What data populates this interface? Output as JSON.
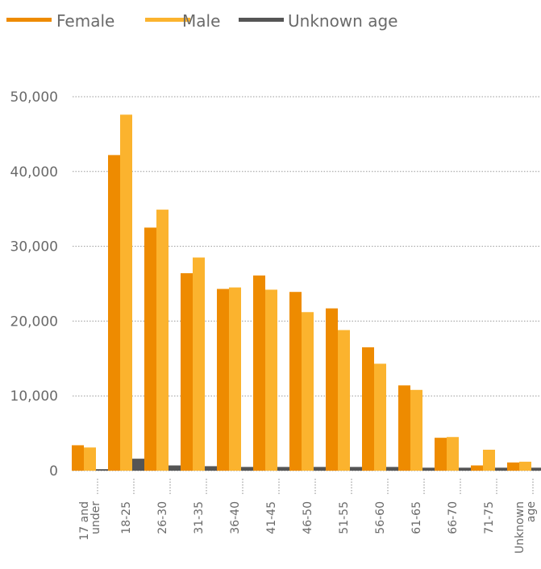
{
  "chart_data": {
    "type": "bar",
    "categories": [
      [
        "17 and",
        "under"
      ],
      [
        "18-25"
      ],
      [
        "26-30"
      ],
      [
        "31-35"
      ],
      [
        "36-40"
      ],
      [
        "41-45"
      ],
      [
        "46-50"
      ],
      [
        "51-55"
      ],
      [
        "56-60"
      ],
      [
        "61-65"
      ],
      [
        "66-70"
      ],
      [
        "71-75"
      ],
      [
        "Unknown",
        "age"
      ]
    ],
    "series": [
      {
        "name": "Female",
        "color": "#ee8b00",
        "values": [
          3400,
          42200,
          32500,
          26400,
          24300,
          26100,
          23900,
          21700,
          16500,
          11400,
          4400,
          700,
          1100
        ]
      },
      {
        "name": "Male",
        "color": "#fbb32e",
        "values": [
          3100,
          47600,
          34900,
          28500,
          24500,
          24200,
          21200,
          18800,
          14300,
          10800,
          4500,
          2800,
          1200
        ]
      },
      {
        "name": "Unknown age",
        "color": "#555555",
        "values": [
          200,
          1600,
          700,
          600,
          500,
          500,
          500,
          500,
          500,
          400,
          400,
          400,
          400
        ]
      }
    ],
    "y_ticks": [
      "0",
      "10,000",
      "20,000",
      "30,000",
      "40,000",
      "50,000"
    ],
    "y_tick_values": [
      0,
      10000,
      20000,
      30000,
      40000,
      50000
    ],
    "ylim": [
      0,
      50000
    ],
    "grid": true,
    "grid_color": "#9a9a9a",
    "legend_position": "top-left"
  }
}
